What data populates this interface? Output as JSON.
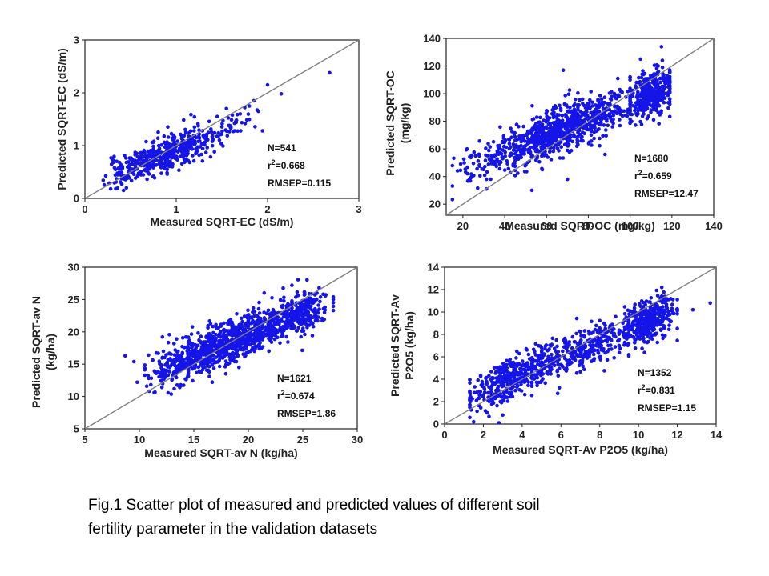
{
  "caption": {
    "line1": "Fig.1  Scatter  plot  of  measured  and  predicted  values  of  different  soil",
    "line2": "fertility    parameter in the validation datasets"
  },
  "colors": {
    "points": "#1515e8",
    "line": "#808080",
    "axis": "#222222",
    "panel_bg": "#ffffff"
  },
  "chart_data": [
    {
      "type": "scatter",
      "id": "ec",
      "xlabel": "Measured SQRT-EC (dS/m)",
      "ylabel": [
        "Predicted SQRT-EC (dS/m)"
      ],
      "xlim": [
        0,
        3
      ],
      "ylim": [
        0,
        3
      ],
      "xticks": [
        0,
        1,
        2,
        3
      ],
      "yticks": [
        0,
        1,
        2,
        3
      ],
      "one_to_one_line": true,
      "stats": [
        "N=541",
        "r²=0.668",
        "RMSEP=0.115"
      ],
      "n": 541,
      "r2": 0.668,
      "rmsep": 0.115,
      "trend": {
        "slope": 0.72,
        "intercept": 0.2,
        "noise": 0.16,
        "seed": 11
      },
      "point_clusters": [
        {
          "count": 120,
          "x_mean": 0.5,
          "x_sd": 0.14,
          "x_range": [
            0.2,
            0.75
          ]
        },
        {
          "count": 220,
          "x_mean": 0.85,
          "x_sd": 0.15,
          "x_range": [
            0.55,
            1.2
          ]
        },
        {
          "count": 150,
          "x_mean": 1.15,
          "x_sd": 0.17,
          "x_range": [
            0.9,
            1.6
          ]
        },
        {
          "count": 40,
          "x_mean": 1.6,
          "x_sd": 0.15,
          "x_range": [
            1.3,
            1.95
          ]
        }
      ],
      "outliers": [
        [
          2.15,
          1.98
        ],
        [
          2.0,
          2.15
        ],
        [
          1.85,
          1.85
        ],
        [
          2.68,
          2.38
        ],
        [
          1.75,
          1.72
        ],
        [
          1.9,
          1.65
        ],
        [
          1.55,
          1.7
        ],
        [
          1.65,
          1.45
        ],
        [
          1.7,
          1.6
        ],
        [
          1.45,
          1.55
        ],
        [
          1.8,
          1.75
        ]
      ]
    },
    {
      "type": "scatter",
      "id": "oc",
      "xlabel": "Measured SQRT-OC (mg/kg)",
      "ylabel": [
        "Predicted SQRT-OC",
        "(mg/kg)"
      ],
      "xlim": [
        12,
        140
      ],
      "ylim": [
        12,
        140
      ],
      "xticks": [
        20,
        40,
        60,
        80,
        100,
        120,
        140
      ],
      "yticks": [
        20,
        40,
        60,
        80,
        100,
        120,
        140
      ],
      "one_to_one_line": true,
      "stats": [
        "N=1680",
        "r²=0.659",
        "RMSEP=12.47"
      ],
      "n": 1680,
      "r2": 0.659,
      "rmsep": 12.47,
      "trend": {
        "slope": 0.62,
        "intercept": 32,
        "noise": 8,
        "seed": 23
      },
      "point_clusters": [
        {
          "count": 180,
          "x_mean": 38,
          "x_sd": 12,
          "x_range": [
            15,
            55
          ]
        },
        {
          "count": 420,
          "x_mean": 62,
          "x_sd": 8,
          "x_range": [
            45,
            75
          ]
        },
        {
          "count": 300,
          "x_mean": 82,
          "x_sd": 9,
          "x_range": [
            70,
            100
          ]
        },
        {
          "count": 380,
          "x_mean": 110,
          "x_sd": 6,
          "x_range": [
            100,
            119
          ]
        }
      ],
      "outliers": [
        [
          68,
          117
        ],
        [
          53,
          30
        ],
        [
          70,
          38
        ],
        [
          115,
          134
        ],
        [
          105,
          125
        ],
        [
          58,
          45
        ],
        [
          88,
          56
        ]
      ]
    },
    {
      "type": "scatter",
      "id": "n",
      "xlabel": "Measured SQRT-av N (kg/ha)",
      "ylabel": [
        "Predicted SQRT-av N",
        "(kg/ha)"
      ],
      "xlim": [
        5,
        30
      ],
      "ylim": [
        5,
        30
      ],
      "xticks": [
        5,
        10,
        15,
        20,
        25,
        30
      ],
      "yticks": [
        5,
        10,
        15,
        20,
        25,
        30
      ],
      "one_to_one_line": true,
      "stats": [
        "N=1621",
        "r²=0.674",
        "RMSEP=1.86"
      ],
      "n": 1621,
      "r2": 0.674,
      "rmsep": 1.86,
      "trend": {
        "slope": 0.68,
        "intercept": 6,
        "noise": 1.6,
        "seed": 37
      },
      "point_clusters": [
        {
          "count": 240,
          "x_mean": 14,
          "x_sd": 1.6,
          "x_range": [
            10.5,
            16.5
          ]
        },
        {
          "count": 520,
          "x_mean": 17.5,
          "x_sd": 1.8,
          "x_range": [
            14.5,
            21
          ]
        },
        {
          "count": 300,
          "x_mean": 21,
          "x_sd": 1.8,
          "x_range": [
            18.5,
            24
          ]
        },
        {
          "count": 260,
          "x_mean": 25,
          "x_sd": 1.2,
          "x_range": [
            22.5,
            27.8
          ]
        }
      ],
      "outliers": [
        [
          8.7,
          16.3
        ],
        [
          9.5,
          15.4
        ],
        [
          9.8,
          12.2
        ],
        [
          13.2,
          11.2
        ],
        [
          13.8,
          11.8
        ],
        [
          27.8,
          25.4
        ],
        [
          24,
          27.2
        ],
        [
          26.5,
          26.8
        ]
      ]
    },
    {
      "type": "scatter",
      "id": "p",
      "xlabel": "Measured SQRT-Av P2O5 (kg/ha)",
      "ylabel": [
        "Predicted SQRT-Av",
        "P2O5 (kg/ha)"
      ],
      "xlim": [
        0,
        14
      ],
      "ylim": [
        0,
        14
      ],
      "xticks": [
        0,
        2,
        4,
        6,
        8,
        10,
        12,
        14
      ],
      "yticks": [
        0,
        2,
        4,
        6,
        8,
        10,
        12,
        14
      ],
      "one_to_one_line": true,
      "stats": [
        "N=1352",
        "r²=0.831",
        "RMSEP=1.15"
      ],
      "n": 1352,
      "r2": 0.831,
      "rmsep": 1.15,
      "trend": {
        "slope": 0.72,
        "intercept": 1.6,
        "noise": 0.9,
        "seed": 53
      },
      "point_clusters": [
        {
          "count": 330,
          "x_mean": 3.2,
          "x_sd": 1.0,
          "x_range": [
            1.3,
            5
          ]
        },
        {
          "count": 220,
          "x_mean": 6,
          "x_sd": 1.1,
          "x_range": [
            4.5,
            8
          ]
        },
        {
          "count": 150,
          "x_mean": 8,
          "x_sd": 0.8,
          "x_range": [
            7,
            9.5
          ]
        },
        {
          "count": 400,
          "x_mean": 10.5,
          "x_sd": 0.7,
          "x_range": [
            9,
            12
          ]
        }
      ],
      "outliers": [
        [
          1.5,
          0.2
        ],
        [
          2.8,
          0.1
        ],
        [
          13.7,
          10.8
        ],
        [
          12.8,
          10.2
        ],
        [
          11.2,
          12.2
        ],
        [
          3,
          0.8
        ],
        [
          2.2,
          1.0
        ]
      ]
    }
  ]
}
